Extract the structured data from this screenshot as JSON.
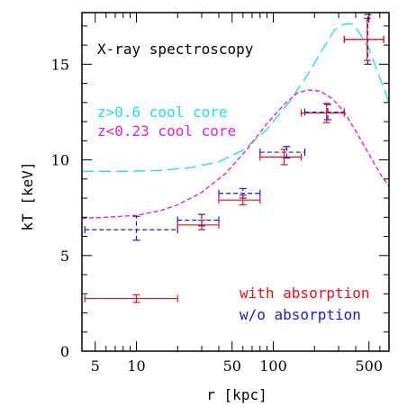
{
  "chart_data": {
    "type": "scatter",
    "title": "X-ray spectroscopy",
    "xlabel": "r [kpc]",
    "ylabel": "kT [keV]",
    "xscale": "log",
    "xlim": [
      4,
      700
    ],
    "ylim": [
      0,
      17.7
    ],
    "xticks": [
      5,
      10,
      50,
      100,
      500
    ],
    "yticks": [
      0,
      5,
      10,
      15
    ],
    "grid": false,
    "legend_position": "bottom-right (points), top-left (curves)",
    "colors": {
      "with_absorption": "#e8101a",
      "without_absorption": "#1a1ad6",
      "cool_core_high_z": "#22e0e0",
      "cool_core_low_z": "#e020d8",
      "axis": "#000000"
    },
    "series": [
      {
        "name": "with absorption",
        "style": "solid",
        "points": [
          {
            "x": 10,
            "xmin": 4.2,
            "xmax": 20,
            "y": 2.75,
            "ylo": 2.55,
            "yhi": 2.95
          },
          {
            "x": 30,
            "xmin": 20,
            "xmax": 40,
            "y": 6.6,
            "ylo": 6.35,
            "yhi": 6.85
          },
          {
            "x": 60,
            "xmin": 40,
            "xmax": 80,
            "y": 7.9,
            "ylo": 7.65,
            "yhi": 8.15
          },
          {
            "x": 120,
            "xmin": 80,
            "xmax": 160,
            "y": 10.15,
            "ylo": 9.75,
            "yhi": 10.55
          },
          {
            "x": 245,
            "xmin": 160,
            "xmax": 330,
            "y": 12.45,
            "ylo": 11.95,
            "yhi": 12.95
          },
          {
            "x": 485,
            "xmin": 330,
            "xmax": 640,
            "y": 16.3,
            "ylo": 15.2,
            "yhi": 17.4
          }
        ]
      },
      {
        "name": "w/o absorption",
        "style": "dashed",
        "points": [
          {
            "x": 10,
            "xmin": 4.2,
            "xmax": 20,
            "y": 6.35,
            "ylo": 5.8,
            "yhi": 7.05
          },
          {
            "x": 30,
            "xmin": 20,
            "xmax": 40,
            "y": 6.85,
            "ylo": 6.55,
            "yhi": 7.15
          },
          {
            "x": 60,
            "xmin": 40,
            "xmax": 80,
            "y": 8.25,
            "ylo": 8.0,
            "yhi": 8.5
          },
          {
            "x": 125,
            "xmin": 80,
            "xmax": 170,
            "y": 10.4,
            "ylo": 10.1,
            "yhi": 10.7
          },
          {
            "x": 250,
            "xmin": 170,
            "xmax": 330,
            "y": 12.5,
            "ylo": 12.1,
            "yhi": 12.9
          },
          {
            "x": 490,
            "xmin": 330,
            "xmax": 640,
            "y": 16.3,
            "ylo": 15.0,
            "yhi": 17.6
          }
        ]
      }
    ],
    "curves": [
      {
        "name": "z>0.6 cool core",
        "style": "long-dash",
        "x": [
          4,
          8,
          15,
          25,
          40,
          60,
          90,
          130,
          180,
          230,
          280,
          330,
          380,
          430,
          500,
          600,
          700
        ],
        "y": [
          9.4,
          9.4,
          9.45,
          9.6,
          9.9,
          10.5,
          11.6,
          13.0,
          14.5,
          15.8,
          16.8,
          17.1,
          17.1,
          16.6,
          15.8,
          14.3,
          13.0
        ]
      },
      {
        "name": "z<0.23 cool core",
        "style": "short-dash",
        "x": [
          4,
          6,
          10,
          15,
          20,
          30,
          45,
          65,
          90,
          120,
          150,
          180,
          220,
          270,
          330,
          400,
          500,
          600,
          700
        ],
        "y": [
          6.95,
          7.0,
          7.1,
          7.35,
          7.65,
          8.3,
          9.3,
          10.6,
          11.9,
          12.9,
          13.5,
          13.65,
          13.6,
          13.2,
          12.5,
          11.5,
          10.3,
          9.3,
          8.6
        ]
      }
    ]
  }
}
